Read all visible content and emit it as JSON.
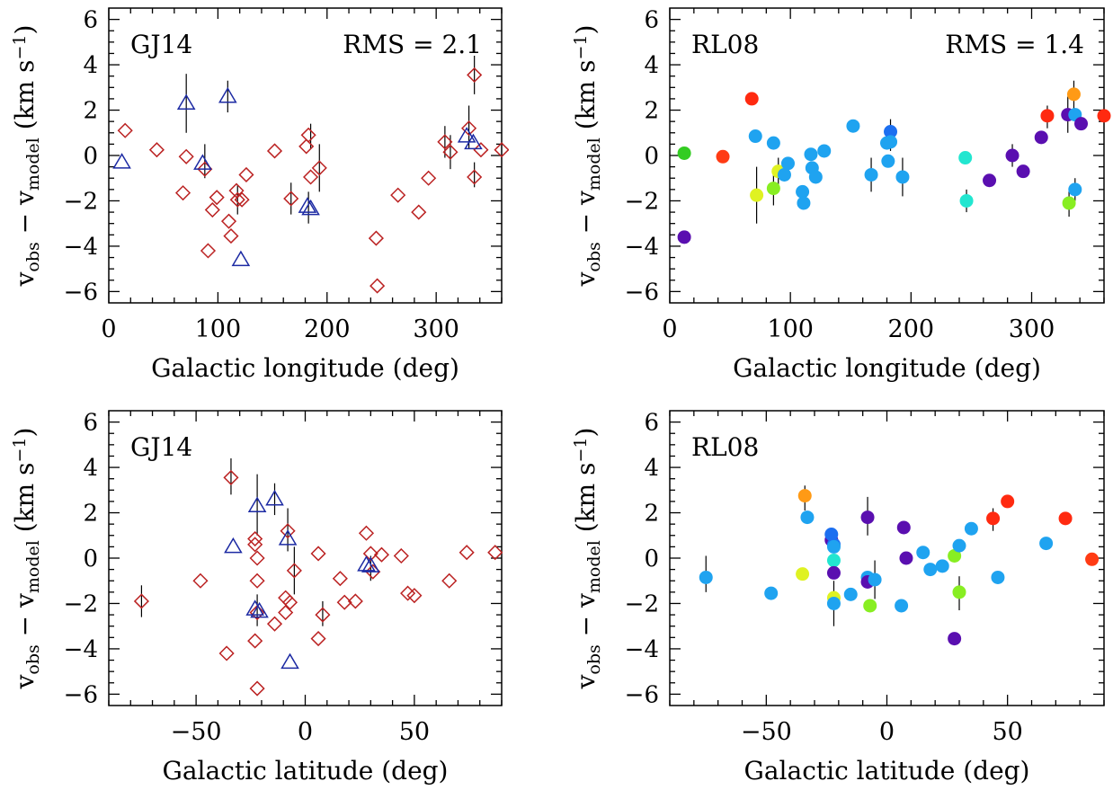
{
  "chart_data": [
    {
      "id": "p1",
      "type": "scatter",
      "panel_label": "GJ14",
      "rms_label": "RMS = 2.1",
      "xlabel": "Galactic longitude (deg)",
      "ylabel": "v_obs − v_model (km s^-1)",
      "xlim": [
        0,
        360
      ],
      "ylim": [
        -6.5,
        6.5
      ],
      "xticks": [
        0,
        100,
        200,
        300
      ],
      "yticks": [
        -6,
        -4,
        -2,
        0,
        2,
        4,
        6
      ],
      "colors": {
        "diamond": "#bb2222",
        "triangle": "#1c2aa3"
      },
      "diamonds": [
        [
          15,
          1.1
        ],
        [
          44,
          0.25
        ],
        [
          68,
          -1.65
        ],
        [
          71,
          -0.05
        ],
        [
          88,
          -0.6
        ],
        [
          91,
          -4.2
        ],
        [
          95,
          -2.4
        ],
        [
          99,
          -1.85
        ],
        [
          110,
          -2.9
        ],
        [
          112,
          -3.55
        ],
        [
          117,
          -1.55
        ],
        [
          118,
          -1.95
        ],
        [
          122,
          -1.95
        ],
        [
          126,
          -0.85
        ],
        [
          152,
          0.2
        ],
        [
          167,
          -1.9
        ],
        [
          181,
          0.4
        ],
        [
          183,
          0.9
        ],
        [
          185,
          -0.95
        ],
        [
          193,
          -0.55
        ],
        [
          245,
          -3.65
        ],
        [
          246,
          -5.75
        ],
        [
          265,
          -1.75
        ],
        [
          284,
          -2.5
        ],
        [
          293,
          -1.0
        ],
        [
          308,
          0.6
        ],
        [
          313,
          0.15
        ],
        [
          330,
          1.2
        ],
        [
          335,
          3.55
        ],
        [
          335,
          -0.95
        ],
        [
          341,
          0.25
        ],
        [
          360,
          0.25
        ]
      ],
      "triangles": [
        [
          12,
          -0.3
        ],
        [
          71,
          2.3
        ],
        [
          86,
          -0.35
        ],
        [
          109,
          2.6
        ],
        [
          121,
          -4.6
        ],
        [
          182,
          -2.25
        ],
        [
          185,
          -2.35
        ],
        [
          328,
          0.85
        ],
        [
          334,
          0.55
        ]
      ],
      "errorbars": [
        [
          71,
          1.0,
          3.6
        ],
        [
          88,
          -1.0,
          0.5
        ],
        [
          109,
          1.9,
          3.3
        ],
        [
          118,
          -2.6,
          -1.3
        ],
        [
          167,
          -2.6,
          -1.2
        ],
        [
          183,
          -3.0,
          -1.6
        ],
        [
          185,
          0.3,
          1.4
        ],
        [
          193,
          -1.6,
          0.5
        ],
        [
          308,
          -0.1,
          1.3
        ],
        [
          313,
          -0.6,
          0.9
        ],
        [
          330,
          0.3,
          2.2
        ],
        [
          335,
          2.7,
          4.4
        ],
        [
          335,
          -1.4,
          -0.3
        ]
      ]
    },
    {
      "id": "p2",
      "type": "scatter",
      "panel_label": "RL08",
      "rms_label": "RMS = 1.4",
      "xlabel": "Galactic longitude (deg)",
      "ylabel": "v_obs − v_model (km s^-1)",
      "xlim": [
        0,
        360
      ],
      "ylim": [
        -6.5,
        6.5
      ],
      "xticks": [
        0,
        100,
        200,
        300
      ],
      "yticks": [
        -6,
        -4,
        -2,
        0,
        2,
        4,
        6
      ],
      "points": [
        [
          12,
          0.1,
          "#33cc22"
        ],
        [
          12,
          -3.6,
          "#5a0fb0"
        ],
        [
          44,
          -0.05,
          "#ff3b14"
        ],
        [
          68,
          2.5,
          "#ff2a10"
        ],
        [
          71,
          0.85,
          "#1fa3f0"
        ],
        [
          72,
          -1.75,
          "#dff222"
        ],
        [
          86,
          0.55,
          "#1fa3f0"
        ],
        [
          86,
          -1.45,
          "#88ee22"
        ],
        [
          90,
          -0.7,
          "#dff222"
        ],
        [
          95,
          -0.85,
          "#1fa3f0"
        ],
        [
          98,
          -0.35,
          "#1fa3f0"
        ],
        [
          110,
          -1.6,
          "#1fa3f0"
        ],
        [
          111,
          -2.1,
          "#1fa3f0"
        ],
        [
          117,
          0.05,
          "#1fa3f0"
        ],
        [
          118,
          -0.55,
          "#1fa3f0"
        ],
        [
          121,
          -0.95,
          "#1fa3f0"
        ],
        [
          128,
          0.2,
          "#1fa3f0"
        ],
        [
          152,
          1.3,
          "#1fa3f0"
        ],
        [
          167,
          -0.85,
          "#1fa3f0"
        ],
        [
          180,
          0.55,
          "#1fa3f0"
        ],
        [
          181,
          -0.25,
          "#1fa3f0"
        ],
        [
          183,
          1.05,
          "#1c6ff0"
        ],
        [
          183,
          0.6,
          "#1fa3f0"
        ],
        [
          193,
          -0.95,
          "#1fa3f0"
        ],
        [
          245,
          -0.1,
          "#22e6d0"
        ],
        [
          246,
          -2.0,
          "#22e6d0"
        ],
        [
          265,
          -1.1,
          "#5a0fb0"
        ],
        [
          284,
          0.0,
          "#5a0fb0"
        ],
        [
          293,
          -0.7,
          "#5a0fb0"
        ],
        [
          308,
          0.8,
          "#5a0fb0"
        ],
        [
          313,
          1.75,
          "#ff2a10"
        ],
        [
          330,
          1.8,
          "#5a0fb0"
        ],
        [
          331,
          -2.1,
          "#88ee22"
        ],
        [
          335,
          2.7,
          "#ff9a15"
        ],
        [
          336,
          1.8,
          "#1fa3f0"
        ],
        [
          336,
          -1.5,
          "#1fa3f0"
        ],
        [
          341,
          1.4,
          "#5a0fb0"
        ],
        [
          360,
          1.75,
          "#ff2a10"
        ]
      ],
      "errorbars": [
        [
          72,
          -3.0,
          -0.5
        ],
        [
          86,
          -2.2,
          -0.6
        ],
        [
          90,
          -1.3,
          -0.1
        ],
        [
          167,
          -1.6,
          -0.1
        ],
        [
          183,
          0.2,
          1.6
        ],
        [
          193,
          -1.8,
          -0.1
        ],
        [
          246,
          -2.5,
          -1.5
        ],
        [
          284,
          -0.5,
          0.5
        ],
        [
          313,
          1.2,
          2.2
        ],
        [
          330,
          1.0,
          2.6
        ],
        [
          331,
          -2.7,
          -1.5
        ],
        [
          335,
          2.0,
          3.3
        ],
        [
          336,
          -2.0,
          -1.0
        ]
      ]
    },
    {
      "id": "p3",
      "type": "scatter",
      "panel_label": "GJ14",
      "xlabel": "Galactic latitude (deg)",
      "ylabel": "v_obs − v_model (km s^-1)",
      "xlim": [
        -90,
        90
      ],
      "ylim": [
        -6.5,
        6.5
      ],
      "xticks": [
        -50,
        0,
        50
      ],
      "yticks": [
        -6,
        -4,
        -2,
        0,
        2,
        4,
        6
      ],
      "colors": {
        "diamond": "#bb2222",
        "triangle": "#1c2aa3"
      },
      "diamonds": [
        [
          -75,
          -1.9
        ],
        [
          -48,
          -1.0
        ],
        [
          -36,
          -4.2
        ],
        [
          -34,
          3.55
        ],
        [
          -23,
          0.85
        ],
        [
          -23,
          0.6
        ],
        [
          -22,
          0.0
        ],
        [
          -22,
          -1.0
        ],
        [
          -22,
          -2.4
        ],
        [
          -23,
          -3.65
        ],
        [
          -22,
          -5.75
        ],
        [
          -14,
          -2.9
        ],
        [
          -9,
          -1.75
        ],
        [
          -9,
          -2.4
        ],
        [
          -8,
          1.2
        ],
        [
          -7,
          -1.95
        ],
        [
          -5,
          -0.55
        ],
        [
          6,
          0.2
        ],
        [
          6,
          -3.55
        ],
        [
          8,
          -2.5
        ],
        [
          16,
          -0.9
        ],
        [
          18,
          -1.95
        ],
        [
          23,
          -1.9
        ],
        [
          28,
          1.1
        ],
        [
          30,
          0.2
        ],
        [
          31,
          -0.6
        ],
        [
          35,
          0.15
        ],
        [
          44,
          0.1
        ],
        [
          47,
          -1.55
        ],
        [
          50,
          -1.65
        ],
        [
          66,
          -1.0
        ],
        [
          74,
          0.25
        ],
        [
          87,
          0.25
        ]
      ],
      "triangles": [
        [
          -33,
          0.5
        ],
        [
          -22,
          2.3
        ],
        [
          -23,
          -2.25
        ],
        [
          -21,
          -2.35
        ],
        [
          -14,
          2.6
        ],
        [
          -8,
          0.85
        ],
        [
          -7,
          -4.6
        ],
        [
          28,
          -0.3
        ],
        [
          30,
          -0.35
        ]
      ],
      "errorbars": [
        [
          -75,
          -2.6,
          -1.2
        ],
        [
          -34,
          2.8,
          4.4
        ],
        [
          -22,
          1.0,
          3.7
        ],
        [
          -22,
          -3.0,
          -1.6
        ],
        [
          -14,
          1.9,
          3.3
        ],
        [
          -8,
          0.3,
          2.2
        ],
        [
          -5,
          -1.6,
          0.5
        ],
        [
          8,
          -3.0,
          -1.9
        ],
        [
          30,
          -1.0,
          0.1
        ]
      ]
    },
    {
      "id": "p4",
      "type": "scatter",
      "panel_label": "RL08",
      "xlabel": "Galactic latitude (deg)",
      "ylabel": "v_obs − v_model (km s^-1)",
      "xlim": [
        -90,
        90
      ],
      "ylim": [
        -6.5,
        6.5
      ],
      "xticks": [
        -50,
        0,
        50
      ],
      "yticks": [
        -6,
        -4,
        -2,
        0,
        2,
        4,
        6
      ],
      "points": [
        [
          -75,
          -0.85,
          "#1fa3f0"
        ],
        [
          -48,
          -1.55,
          "#1fa3f0"
        ],
        [
          -35,
          -0.7,
          "#dff222"
        ],
        [
          -34,
          2.75,
          "#ff9a15"
        ],
        [
          -33,
          1.8,
          "#1fa3f0"
        ],
        [
          -23,
          0.8,
          "#5a0fb0"
        ],
        [
          -23,
          1.05,
          "#1c6ff0"
        ],
        [
          -22,
          0.6,
          "#1c6ff0"
        ],
        [
          -22,
          0.5,
          "#1fa3f0"
        ],
        [
          -22,
          -0.1,
          "#22e6d0"
        ],
        [
          -22,
          -0.65,
          "#5a0fb0"
        ],
        [
          -22,
          -1.75,
          "#dff222"
        ],
        [
          -22,
          -2.0,
          "#1fa3f0"
        ],
        [
          -15,
          -1.6,
          "#1fa3f0"
        ],
        [
          -8,
          1.8,
          "#5a0fb0"
        ],
        [
          -8,
          -0.85,
          "#1fa3f0"
        ],
        [
          -8,
          -1.05,
          "#5a0fb0"
        ],
        [
          -7,
          -2.1,
          "#88ee22"
        ],
        [
          -5,
          -0.95,
          "#1fa3f0"
        ],
        [
          6,
          -2.1,
          "#1fa3f0"
        ],
        [
          7,
          1.35,
          "#5a0fb0"
        ],
        [
          8,
          0.0,
          "#5a0fb0"
        ],
        [
          15,
          0.25,
          "#1fa3f0"
        ],
        [
          18,
          -0.5,
          "#1fa3f0"
        ],
        [
          23,
          -0.35,
          "#1fa3f0"
        ],
        [
          28,
          0.1,
          "#88ee22"
        ],
        [
          28,
          -3.55,
          "#5a0fb0"
        ],
        [
          30,
          0.55,
          "#1fa3f0"
        ],
        [
          30,
          -1.5,
          "#88ee22"
        ],
        [
          35,
          1.3,
          "#1fa3f0"
        ],
        [
          44,
          1.75,
          "#ff2a10"
        ],
        [
          46,
          -0.85,
          "#1fa3f0"
        ],
        [
          50,
          2.5,
          "#ff2a10"
        ],
        [
          66,
          0.65,
          "#1fa3f0"
        ],
        [
          74,
          1.75,
          "#ff2a10"
        ],
        [
          85,
          -0.05,
          "#ff3b14"
        ]
      ],
      "errorbars": [
        [
          -75,
          -1.5,
          0.1
        ],
        [
          -34,
          2.1,
          3.2
        ],
        [
          -22,
          -3.0,
          -1.0
        ],
        [
          -8,
          1.0,
          2.7
        ],
        [
          -5,
          -1.8,
          -0.1
        ],
        [
          28,
          -3.3,
          -3.8
        ],
        [
          30,
          -2.3,
          -0.8
        ],
        [
          44,
          1.2,
          2.2
        ]
      ]
    }
  ]
}
